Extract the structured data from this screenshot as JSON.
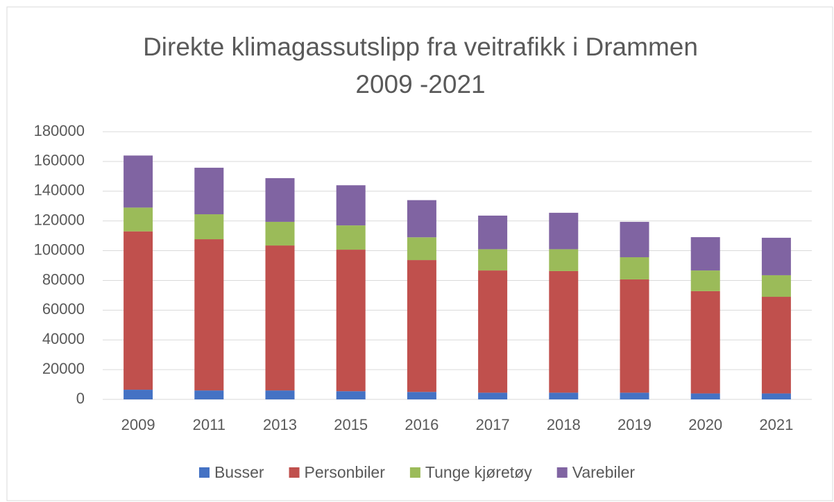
{
  "chart_data": {
    "type": "stacked_bar",
    "title": [
      "Direkte klimagassutslipp fra veitrafikk i Drammen",
      "2009 -2021"
    ],
    "categories": [
      "2009",
      "2011",
      "2013",
      "2015",
      "2016",
      "2017",
      "2018",
      "2019",
      "2020",
      "2021"
    ],
    "series": [
      {
        "name": "Busser",
        "color": "#4472c4",
        "values": [
          6500,
          6000,
          6000,
          5500,
          5000,
          4500,
          4500,
          4500,
          4000,
          4000
        ]
      },
      {
        "name": "Personbiler",
        "color": "#c0504d",
        "values": [
          106500,
          101700,
          97500,
          95200,
          88700,
          82200,
          81800,
          76200,
          68800,
          65000
        ]
      },
      {
        "name": "Tunge kjøretøy",
        "color": "#9bbb59",
        "values": [
          16000,
          16800,
          15900,
          16300,
          15300,
          14300,
          14700,
          14900,
          13900,
          14500
        ]
      },
      {
        "name": "Varebiler",
        "color": "#8064a2",
        "values": [
          35000,
          31300,
          29400,
          27000,
          25000,
          22600,
          24500,
          23800,
          22400,
          25200
        ]
      }
    ],
    "ylim": [
      0,
      180000
    ],
    "yticks": [
      0,
      20000,
      40000,
      60000,
      80000,
      100000,
      120000,
      140000,
      160000,
      180000
    ],
    "grid": true,
    "legend": "bottom"
  }
}
